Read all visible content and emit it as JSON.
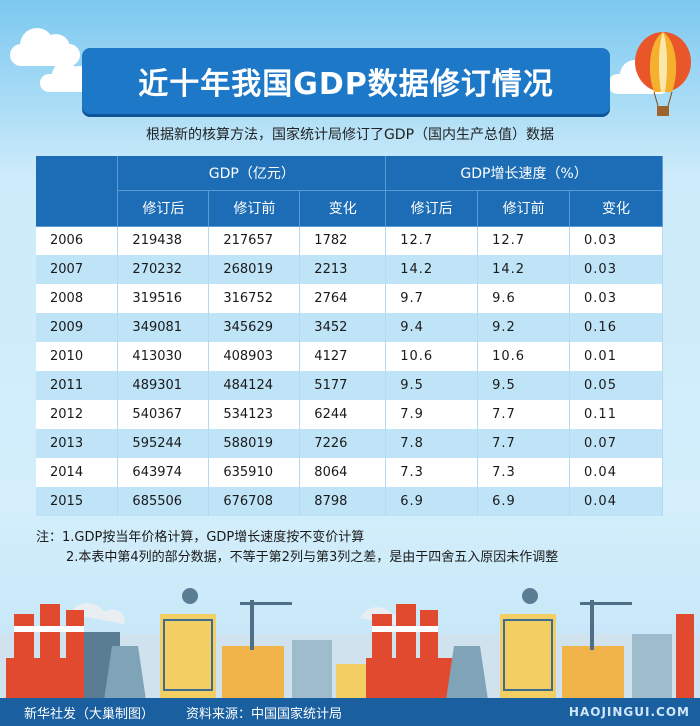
{
  "title": "近十年我国GDP数据修订情况",
  "subtitle": "根据新的核算方法，国家统计局修订了GDP（国内生产总值）数据",
  "table": {
    "group_headers": [
      "GDP（亿元）",
      "GDP增长速度（%）"
    ],
    "sub_headers": [
      "修订后",
      "修订前",
      "变化",
      "修订后",
      "修订前",
      "变化"
    ],
    "rows": [
      [
        "2006",
        "219438",
        "217657",
        "1782",
        "12.7",
        "12.7",
        "0.03"
      ],
      [
        "2007",
        "270232",
        "268019",
        "2213",
        "14.2",
        "14.2",
        "0.03"
      ],
      [
        "2008",
        "319516",
        "316752",
        "2764",
        "9.7",
        "9.6",
        "0.03"
      ],
      [
        "2009",
        "349081",
        "345629",
        "3452",
        "9.4",
        "9.2",
        "0.16"
      ],
      [
        "2010",
        "413030",
        "408903",
        "4127",
        "10.6",
        "10.6",
        "0.01"
      ],
      [
        "2011",
        "489301",
        "484124",
        "5177",
        "9.5",
        "9.5",
        "0.05"
      ],
      [
        "2012",
        "540367",
        "534123",
        "6244",
        "7.9",
        "7.7",
        "0.11"
      ],
      [
        "2013",
        "595244",
        "588019",
        "7226",
        "7.8",
        "7.7",
        "0.07"
      ],
      [
        "2014",
        "643974",
        "635910",
        "8064",
        "7.3",
        "7.3",
        "0.04"
      ],
      [
        "2015",
        "685506",
        "676708",
        "8798",
        "6.9",
        "6.9",
        "0.04"
      ]
    ]
  },
  "notes": {
    "line1": "注：1.GDP按当年价格计算，GDP增长速度按不变价计算",
    "line2": "2.本表中第4列的部分数据，不等于第2列与第3列之差，是由于四舍五入原因未作调整"
  },
  "footer": {
    "credit": "新华社发（大巢制图）",
    "source": "资料来源：中国国家统计局",
    "watermark": "HAOJINGUI.COM"
  },
  "colors": {
    "header_blue": "#1c6db5",
    "row_alt": "#bfe3f7",
    "footer_blue": "#1a5f9f"
  }
}
